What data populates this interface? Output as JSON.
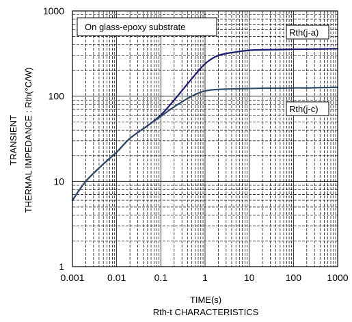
{
  "chart_data": {
    "type": "line",
    "title": "",
    "xlabel": "TIME(s)",
    "caption": "Rth-t CHARACTERISTICS",
    "ylabel_line1": "TRANSIENT",
    "ylabel_line2": "THERMAL IMPEDANCE : Rth(°C/W)",
    "xscale": "log",
    "yscale": "log",
    "xlim": [
      0.001,
      1000
    ],
    "ylim": [
      1,
      1000
    ],
    "x_ticks": [
      {
        "value": 0.001,
        "label": "0.001"
      },
      {
        "value": 0.01,
        "label": "0.01"
      },
      {
        "value": 0.1,
        "label": "0.1"
      },
      {
        "value": 1,
        "label": "1"
      },
      {
        "value": 10,
        "label": "10"
      },
      {
        "value": 100,
        "label": "100"
      },
      {
        "value": 1000,
        "label": "1000"
      }
    ],
    "y_ticks": [
      {
        "value": 1,
        "label": "1"
      },
      {
        "value": 10,
        "label": "10"
      },
      {
        "value": 100,
        "label": "100"
      },
      {
        "value": 1000,
        "label": "1000"
      }
    ],
    "grid": true,
    "annotation": "On glass-epoxy substrate",
    "series": [
      {
        "name": "Rth(j-a)",
        "color": "#1a1a6e",
        "x": [
          0.001,
          0.002,
          0.005,
          0.01,
          0.02,
          0.05,
          0.1,
          0.2,
          0.5,
          1,
          2,
          5,
          10,
          20,
          50,
          100,
          200,
          500,
          1000
        ],
        "y": [
          6,
          10,
          16,
          22,
          32,
          45,
          60,
          90,
          160,
          240,
          300,
          330,
          345,
          350,
          352,
          355,
          356,
          358,
          360
        ]
      },
      {
        "name": "Rth(j-c)",
        "color": "#2e4a66",
        "x": [
          0.001,
          0.002,
          0.005,
          0.01,
          0.02,
          0.05,
          0.1,
          0.2,
          0.5,
          1,
          2,
          5,
          10,
          20,
          50,
          100,
          200,
          500,
          1000
        ],
        "y": [
          6,
          10,
          16,
          22,
          32,
          45,
          58,
          75,
          100,
          115,
          120,
          122,
          123,
          124,
          124,
          125,
          125,
          126,
          127
        ]
      }
    ]
  }
}
